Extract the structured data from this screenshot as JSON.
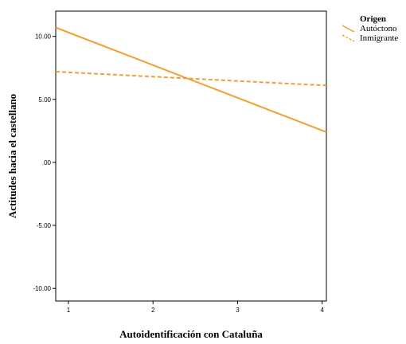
{
  "chart_data": {
    "type": "line",
    "xlabel": "Autoidentificación con Cataluña",
    "ylabel": "Actitudes hacia el castellano",
    "xlim": [
      0.85,
      4.05
    ],
    "ylim": [
      -11.0,
      12.0
    ],
    "xticks": [
      1,
      2,
      3,
      4
    ],
    "xtick_labels": [
      "1",
      "2",
      "3",
      "4"
    ],
    "yticks": [
      10.0,
      5.0,
      0.0,
      -5.0,
      -10.0
    ],
    "ytick_labels": [
      "10.00",
      "5.00",
      ".00",
      "-5.00",
      "-10.00"
    ],
    "grid": false,
    "legend": {
      "title": "Origen",
      "position": "outside-right-top"
    },
    "series": [
      {
        "name": "Autóctono",
        "style": "solid",
        "color": "#f0a030",
        "x": [
          0.85,
          4.05
        ],
        "y": [
          10.7,
          2.4
        ]
      },
      {
        "name": "Inmigrante",
        "style": "dashed",
        "color": "#f0a030",
        "x": [
          0.85,
          4.05
        ],
        "y": [
          7.2,
          6.1
        ]
      }
    ]
  }
}
